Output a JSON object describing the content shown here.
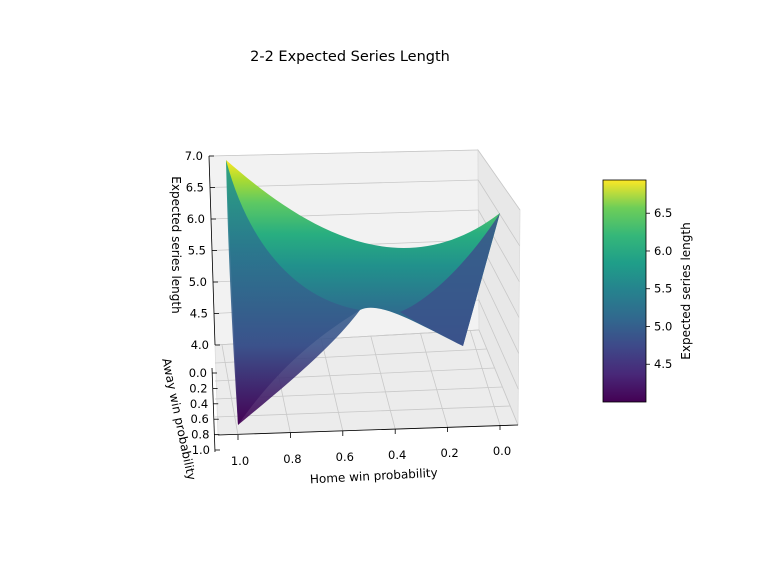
{
  "chart_data": {
    "type": "surface",
    "title": "2-2 Expected Series Length",
    "xlabel": "Home win probability",
    "ylabel": "Away win probability",
    "zlabel": "Expected series length",
    "x_ticks": [
      "1.0",
      "0.8",
      "0.6",
      "0.4",
      "0.2",
      "0.0"
    ],
    "y_ticks": [
      "0.0",
      "0.2",
      "0.4",
      "0.6",
      "0.8",
      "1.0"
    ],
    "z_ticks": [
      "4.0",
      "4.5",
      "5.0",
      "5.5",
      "6.0",
      "6.5",
      "7.0"
    ],
    "zlim": [
      4.0,
      7.0
    ],
    "colormap": "viridis",
    "colorbar": {
      "label": "Expected series length",
      "ticks": [
        "4.5",
        "5.0",
        "5.5",
        "6.0",
        "6.5"
      ],
      "range": [
        4.0,
        6.94
      ]
    },
    "corner_values": [
      {
        "home_win": 1.0,
        "away_win": 0.0,
        "expected_length": 6.94
      },
      {
        "home_win": 0.0,
        "away_win": 0.0,
        "expected_length": 6.2
      },
      {
        "home_win": 0.0,
        "away_win": 1.0,
        "expected_length": 4.0
      },
      {
        "home_win": 1.0,
        "away_win": 1.0,
        "expected_length": 4.0
      }
    ],
    "saddle_value": 5.0,
    "grid": true
  }
}
